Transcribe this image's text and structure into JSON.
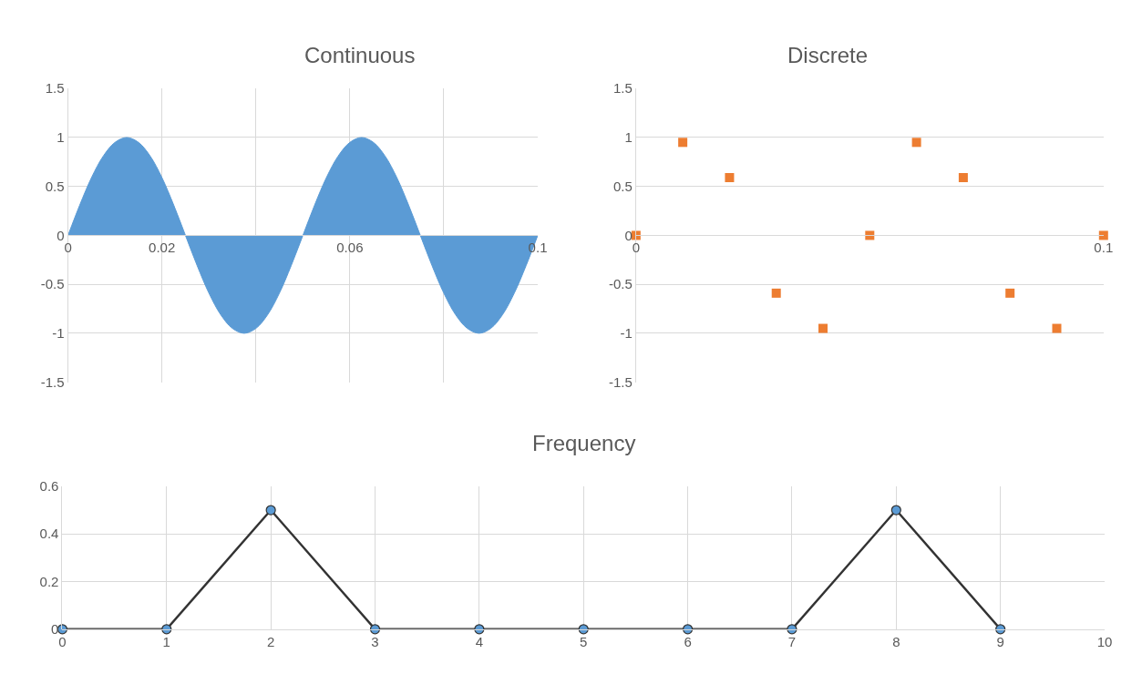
{
  "chart_data": [
    {
      "type": "area",
      "title": "Continuous",
      "color": "#5b9bd5",
      "grid": true,
      "xlim": [
        0,
        0.1
      ],
      "ylim": [
        -1.5,
        1.5
      ],
      "xticks": [
        0,
        0.02,
        {
          "value": 0.04,
          "label": null
        },
        0.06,
        {
          "value": 0.08,
          "label": null
        },
        0.1
      ],
      "yticks": [
        -1.5,
        -1,
        -0.5,
        0,
        0.5,
        1,
        1.5
      ],
      "x": [
        0,
        0.0025,
        0.005,
        0.0075,
        0.01,
        0.0125,
        0.015,
        0.0175,
        0.02,
        0.0225,
        0.025,
        0.0275,
        0.03,
        0.0325,
        0.035,
        0.0375,
        0.04,
        0.0425,
        0.045,
        0.0475,
        0.05,
        0.0525,
        0.055,
        0.0575,
        0.06,
        0.0625,
        0.065,
        0.0675,
        0.07,
        0.0725,
        0.075,
        0.0775,
        0.08,
        0.0825,
        0.085,
        0.0875,
        0.09,
        0.0925,
        0.095,
        0.0975,
        0.1
      ],
      "values": [
        0,
        0.31,
        0.59,
        0.81,
        0.95,
        1,
        0.95,
        0.81,
        0.59,
        0.31,
        0,
        -0.31,
        -0.59,
        -0.81,
        -0.95,
        -1,
        -0.95,
        -0.81,
        -0.59,
        -0.31,
        0,
        0.31,
        0.59,
        0.81,
        0.95,
        1,
        0.95,
        0.81,
        0.59,
        0.31,
        0,
        -0.31,
        -0.59,
        -0.81,
        -0.95,
        -1,
        -0.95,
        -0.81,
        -0.59,
        -0.31,
        0
      ]
    },
    {
      "type": "scatter",
      "title": "Discrete",
      "color": "#ed7d31",
      "marker": "square",
      "grid": "y",
      "xlim": [
        0,
        0.1
      ],
      "ylim": [
        -1.5,
        1.5
      ],
      "xticks": [
        0,
        0.1
      ],
      "yticks": [
        -1.5,
        -1,
        -0.5,
        0,
        0.5,
        1,
        1.5
      ],
      "x": [
        0,
        0.01,
        0.02,
        0.03,
        0.04,
        0.05,
        0.06,
        0.07,
        0.08,
        0.09,
        0.1
      ],
      "values": [
        0,
        0.95,
        0.59,
        -0.59,
        -0.95,
        0,
        0.95,
        0.59,
        -0.59,
        -0.95,
        0
      ]
    },
    {
      "type": "line",
      "title": "Frequency",
      "color": "#333333",
      "colors": [
        "#5b9bd5",
        "#5b9bd5",
        "#5b9bd5",
        "#5b9bd5",
        "#5b9bd5",
        "#5b9bd5",
        "#5b9bd5",
        "#5b9bd5",
        "#5b9bd5",
        "#5b9bd5"
      ],
      "marker": "circle",
      "grid": true,
      "xlim": [
        0,
        10
      ],
      "ylim": [
        0,
        0.6
      ],
      "xticks": [
        0,
        1,
        2,
        3,
        4,
        5,
        6,
        7,
        8,
        9,
        10
      ],
      "yticks": [
        0,
        0.2,
        0.4,
        0.6
      ],
      "x": [
        0,
        1,
        2,
        3,
        4,
        5,
        6,
        7,
        8,
        9
      ],
      "values": [
        0,
        0,
        0.5,
        0,
        0,
        0,
        0,
        0,
        0.5,
        0
      ]
    }
  ]
}
